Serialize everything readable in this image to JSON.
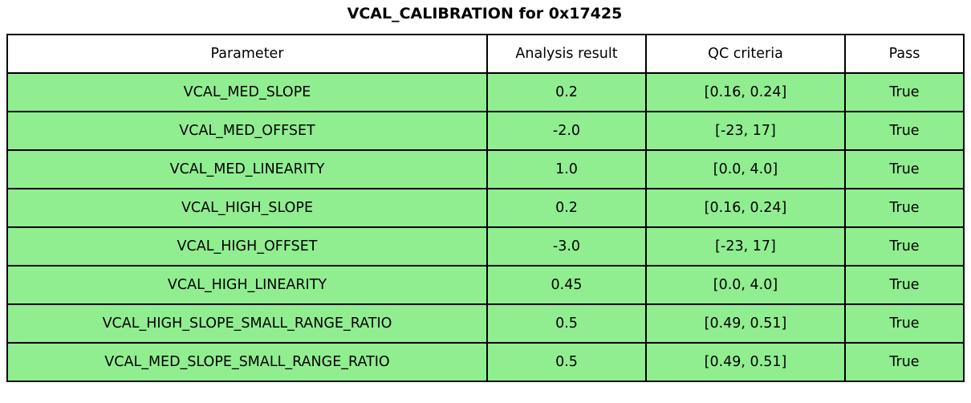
{
  "title": "VCAL_CALIBRATION for 0x17425",
  "table": {
    "columns": [
      "Parameter",
      "Analysis result",
      "QC criteria",
      "Pass"
    ],
    "pass_row_color": "#90EE90",
    "header_color": "#ffffff",
    "border_color": "#000000",
    "rows": [
      [
        "VCAL_MED_SLOPE",
        "0.2",
        "[0.16, 0.24]",
        "True"
      ],
      [
        "VCAL_MED_OFFSET",
        "-2.0",
        "[-23, 17]",
        "True"
      ],
      [
        "VCAL_MED_LINEARITY",
        "1.0",
        "[0.0, 4.0]",
        "True"
      ],
      [
        "VCAL_HIGH_SLOPE",
        "0.2",
        "[0.16, 0.24]",
        "True"
      ],
      [
        "VCAL_HIGH_OFFSET",
        "-3.0",
        "[-23, 17]",
        "True"
      ],
      [
        "VCAL_HIGH_LINEARITY",
        "0.45",
        "[0.0, 4.0]",
        "True"
      ],
      [
        "VCAL_HIGH_SLOPE_SMALL_RANGE_RATIO",
        "0.5",
        "[0.49, 0.51]",
        "True"
      ],
      [
        "VCAL_MED_SLOPE_SMALL_RANGE_RATIO",
        "0.5",
        "[0.49, 0.51]",
        "True"
      ]
    ]
  }
}
